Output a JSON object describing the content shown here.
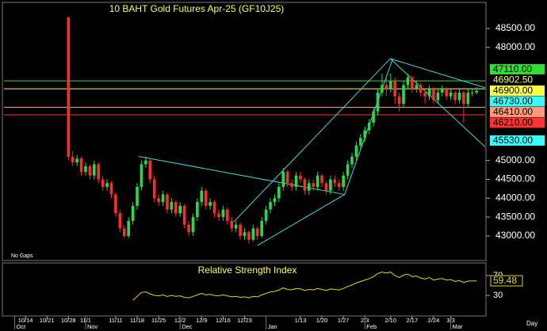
{
  "chart_data": {
    "type": "candlestick",
    "title": "10 BAHT Gold Futures Apr-25 (GF10J25)",
    "note": "No Gaps",
    "period_label": "Day",
    "xlim": [
      0,
      112
    ],
    "ylim": [
      42370,
      49170
    ],
    "yticks": [
      {
        "value": 48500,
        "label": "48500.00"
      },
      {
        "value": 48000,
        "label": "48000.00"
      },
      {
        "value": 45000,
        "label": "45000.00"
      },
      {
        "value": 44500,
        "label": "44500.00"
      },
      {
        "value": 44000,
        "label": "44000.00"
      },
      {
        "value": 43500,
        "label": "43500.00"
      },
      {
        "value": 43000,
        "label": "43000.00"
      }
    ],
    "xticks": [
      {
        "value": 5,
        "label": "10/14"
      },
      {
        "value": 10,
        "label": "10/21"
      },
      {
        "value": 15,
        "label": "10/28"
      },
      {
        "value": 19,
        "label": "11/1"
      },
      {
        "value": 26,
        "label": "11/11"
      },
      {
        "value": 31,
        "label": "11/18"
      },
      {
        "value": 36,
        "label": "11/25"
      },
      {
        "value": 41,
        "label": "12/2"
      },
      {
        "value": 46,
        "label": "12/9"
      },
      {
        "value": 51,
        "label": "12/16"
      },
      {
        "value": 56,
        "label": "12/23"
      },
      {
        "value": 69,
        "label": "1/13"
      },
      {
        "value": 74,
        "label": "1/20"
      },
      {
        "value": 79,
        "label": "1/27"
      },
      {
        "value": 84,
        "label": "2/3"
      },
      {
        "value": 90,
        "label": "2/10"
      },
      {
        "value": 95,
        "label": "2/17"
      },
      {
        "value": 100,
        "label": "2/24"
      },
      {
        "value": 104,
        "label": "3/3"
      }
    ],
    "month_ticks": [
      {
        "value": 2.5,
        "label": "Oct"
      },
      {
        "value": 19,
        "label": "Nov"
      },
      {
        "value": 41,
        "label": "Dec"
      },
      {
        "value": 61,
        "label": "Jan"
      },
      {
        "value": 84,
        "label": "Feb"
      },
      {
        "value": 104,
        "label": "Mar"
      }
    ],
    "up_color": "#22dd44",
    "down_color": "#ff2a2a",
    "x": [
      15,
      16,
      17,
      18,
      19,
      20,
      21,
      22,
      23,
      24,
      25,
      26,
      27,
      28,
      29,
      30,
      31,
      32,
      33,
      34,
      35,
      36,
      37,
      38,
      39,
      40,
      41,
      42,
      43,
      44,
      45,
      46,
      47,
      48,
      49,
      50,
      51,
      52,
      53,
      54,
      55,
      56,
      57,
      58,
      59,
      60,
      61,
      62,
      63,
      64,
      65,
      66,
      67,
      68,
      69,
      70,
      71,
      72,
      73,
      74,
      75,
      76,
      77,
      78,
      79,
      80,
      81,
      82,
      83,
      84,
      85,
      86,
      87,
      88,
      89,
      90,
      91,
      92,
      93,
      94,
      95,
      96,
      97,
      98,
      99,
      100,
      101,
      102,
      103,
      104,
      105,
      106,
      107,
      108,
      109,
      110
    ],
    "ohlc": [
      [
        48800,
        48800,
        45000,
        45100
      ],
      [
        45100,
        45250,
        44850,
        44950
      ],
      [
        44950,
        45150,
        44850,
        45050
      ],
      [
        45050,
        45100,
        44600,
        44700
      ],
      [
        44700,
        44950,
        44600,
        44850
      ],
      [
        44850,
        44900,
        44500,
        44600
      ],
      [
        44600,
        45000,
        44500,
        44900
      ],
      [
        44900,
        44950,
        44400,
        44500
      ],
      [
        44500,
        44600,
        44200,
        44300
      ],
      [
        44300,
        44500,
        44200,
        44400
      ],
      [
        44400,
        44450,
        44000,
        44100
      ],
      [
        44100,
        44150,
        43500,
        43600
      ],
      [
        43600,
        43700,
        43100,
        43200
      ],
      [
        43200,
        43300,
        42950,
        43000
      ],
      [
        43000,
        43500,
        42950,
        43400
      ],
      [
        43400,
        43900,
        43300,
        43800
      ],
      [
        43800,
        44400,
        43700,
        44300
      ],
      [
        44300,
        45000,
        44200,
        44900
      ],
      [
        44900,
        45100,
        44800,
        45000
      ],
      [
        45000,
        45050,
        44400,
        44500
      ],
      [
        44500,
        44600,
        43900,
        44000
      ],
      [
        44000,
        44100,
        43800,
        43900
      ],
      [
        43900,
        44200,
        43800,
        44100
      ],
      [
        44100,
        44150,
        43600,
        43700
      ],
      [
        43700,
        44000,
        43600,
        43900
      ],
      [
        43900,
        43950,
        43500,
        43600
      ],
      [
        43600,
        43900,
        43500,
        43800
      ],
      [
        43800,
        43850,
        43200,
        43300
      ],
      [
        43300,
        43400,
        43000,
        43100
      ],
      [
        43100,
        43600,
        43000,
        43500
      ],
      [
        43500,
        44000,
        43400,
        43900
      ],
      [
        43900,
        44300,
        43800,
        44200
      ],
      [
        44200,
        44250,
        43700,
        43800
      ],
      [
        43800,
        44000,
        43700,
        43900
      ],
      [
        43900,
        43950,
        43500,
        43600
      ],
      [
        43600,
        43700,
        43400,
        43500
      ],
      [
        43500,
        43800,
        43400,
        43700
      ],
      [
        43700,
        43750,
        43300,
        43400
      ],
      [
        43400,
        43500,
        43100,
        43200
      ],
      [
        43200,
        43400,
        43100,
        43300
      ],
      [
        43300,
        43350,
        42900,
        43000
      ],
      [
        43000,
        43200,
        42900,
        43100
      ],
      [
        43100,
        43150,
        42800,
        42900
      ],
      [
        42900,
        43300,
        42850,
        43200
      ],
      [
        43200,
        43250,
        42900,
        43000
      ],
      [
        43000,
        43500,
        42950,
        43400
      ],
      [
        43400,
        43800,
        43300,
        43700
      ],
      [
        43700,
        44000,
        43600,
        43900
      ],
      [
        43900,
        44100,
        43800,
        44000
      ],
      [
        44000,
        44400,
        43900,
        44300
      ],
      [
        44300,
        44800,
        44200,
        44700
      ],
      [
        44700,
        44750,
        44300,
        44400
      ],
      [
        44400,
        44500,
        44200,
        44300
      ],
      [
        44300,
        44700,
        44200,
        44600
      ],
      [
        44600,
        44700,
        44400,
        44500
      ],
      [
        44500,
        44550,
        44100,
        44200
      ],
      [
        44200,
        44500,
        44100,
        44400
      ],
      [
        44400,
        44500,
        44200,
        44300
      ],
      [
        44300,
        44700,
        44200,
        44600
      ],
      [
        44600,
        44650,
        44300,
        44400
      ],
      [
        44400,
        44450,
        44100,
        44200
      ],
      [
        44200,
        44600,
        44100,
        44500
      ],
      [
        44500,
        44600,
        44300,
        44400
      ],
      [
        44400,
        44500,
        44200,
        44300
      ],
      [
        44300,
        44700,
        44200,
        44600
      ],
      [
        44600,
        45000,
        44500,
        44900
      ],
      [
        44900,
        45200,
        44800,
        45100
      ],
      [
        45100,
        45500,
        45000,
        45400
      ],
      [
        45400,
        45700,
        45300,
        45600
      ],
      [
        45600,
        45900,
        45500,
        45800
      ],
      [
        45800,
        46100,
        45700,
        46000
      ],
      [
        46000,
        46400,
        45900,
        46300
      ],
      [
        46300,
        46900,
        46200,
        46800
      ],
      [
        46800,
        47300,
        46700,
        47000
      ],
      [
        47000,
        47200,
        46700,
        46900
      ],
      [
        46900,
        47300,
        46800,
        47100
      ],
      [
        47100,
        47200,
        46500,
        46700
      ],
      [
        46700,
        46800,
        46300,
        46500
      ],
      [
        46500,
        47100,
        46400,
        47000
      ],
      [
        47000,
        47300,
        46900,
        47200
      ],
      [
        47200,
        47250,
        46800,
        46900
      ],
      [
        46900,
        47100,
        46800,
        47000
      ],
      [
        47000,
        47050,
        46700,
        46800
      ],
      [
        46800,
        46900,
        46500,
        46700
      ],
      [
        46700,
        47000,
        46600,
        46900
      ],
      [
        46900,
        46950,
        46500,
        46600
      ],
      [
        46600,
        46900,
        46500,
        46800
      ],
      [
        46800,
        47000,
        46700,
        46900
      ],
      [
        46900,
        46950,
        46600,
        46700
      ],
      [
        46700,
        46900,
        46600,
        46800
      ],
      [
        46800,
        46850,
        46500,
        46600
      ],
      [
        46600,
        46900,
        46500,
        46800
      ],
      [
        46800,
        46850,
        46000,
        46500
      ],
      [
        46500,
        46900,
        46400,
        46800
      ],
      [
        46800,
        46900,
        46700,
        46800
      ],
      [
        46800,
        46950,
        46750,
        46850
      ]
    ],
    "levels": [
      {
        "value": 47110,
        "label": "47110.00",
        "color": "#33dd33",
        "style": "box",
        "line": true
      },
      {
        "value": 46902.5,
        "label": "46902.50",
        "color": "#ffff44",
        "style": "text",
        "line": false
      },
      {
        "value": 46900,
        "label": "46900.00",
        "color": "#ffff44",
        "style": "box",
        "line": true
      },
      {
        "value": 46730,
        "label": "46730.00",
        "color": "#33ffff",
        "style": "box",
        "line": false
      },
      {
        "value": 46410,
        "label": "46410.00",
        "color": "#ff9977",
        "style": "box",
        "line": true
      },
      {
        "value": 46210,
        "label": "46210.00",
        "color": "#ff3333",
        "style": "box",
        "line": true
      },
      {
        "value": 45530,
        "label": "45530.00",
        "color": "#33ffff",
        "style": "box",
        "line": false
      }
    ],
    "trendline_color": "#33dddd",
    "trendlines": [
      {
        "x": [
          31.3,
          79.3
        ],
        "y": [
          45110,
          44100
        ]
      },
      {
        "x": [
          53.5,
          89.9
        ],
        "y": [
          43376,
          47700
        ]
      },
      {
        "x": [
          59,
          79.3
        ],
        "y": [
          42750,
          44100
        ]
      },
      {
        "x": [
          79.3,
          90.5
        ],
        "y": [
          44100,
          47700
        ]
      },
      {
        "x": [
          89.9,
          112
        ],
        "y": [
          47700,
          46930
        ]
      },
      {
        "x": [
          89.9,
          112
        ],
        "y": [
          47700,
          45360
        ]
      }
    ],
    "indicator": {
      "type": "line",
      "title": "Relative Strength Index",
      "color": "#e6d800",
      "ylim": [
        -10,
        94
      ],
      "yticks": [
        70,
        30
      ],
      "x": [
        30,
        31,
        32,
        33,
        34,
        35,
        36,
        37,
        38,
        39,
        40,
        41,
        42,
        43,
        44,
        45,
        46,
        47,
        48,
        49,
        50,
        51,
        52,
        53,
        54,
        55,
        56,
        57,
        58,
        59,
        60,
        61,
        62,
        63,
        64,
        65,
        66,
        67,
        68,
        69,
        70,
        71,
        72,
        73,
        74,
        75,
        76,
        77,
        78,
        79,
        80,
        81,
        82,
        83,
        84,
        85,
        86,
        87,
        88,
        89,
        90,
        91,
        92,
        93,
        94,
        95,
        96,
        97,
        98,
        99,
        100,
        101,
        102,
        103,
        104,
        105,
        106,
        107,
        108,
        109,
        110
      ],
      "values": [
        20,
        28,
        36,
        37,
        33,
        30,
        29,
        31,
        28,
        30,
        28,
        29,
        26,
        25,
        28,
        31,
        34,
        31,
        32,
        30,
        29,
        31,
        29,
        27,
        28,
        26,
        27,
        25,
        28,
        27,
        31,
        34,
        37,
        38,
        41,
        45,
        42,
        41,
        44,
        43,
        40,
        42,
        41,
        44,
        42,
        40,
        43,
        42,
        41,
        44,
        48,
        51,
        55,
        58,
        61,
        64,
        68,
        74,
        77,
        75,
        77,
        70,
        66,
        71,
        73,
        68,
        69,
        65,
        63,
        66,
        61,
        63,
        64,
        61,
        62,
        58,
        60,
        56,
        59,
        59,
        59.48
      ]
    }
  }
}
